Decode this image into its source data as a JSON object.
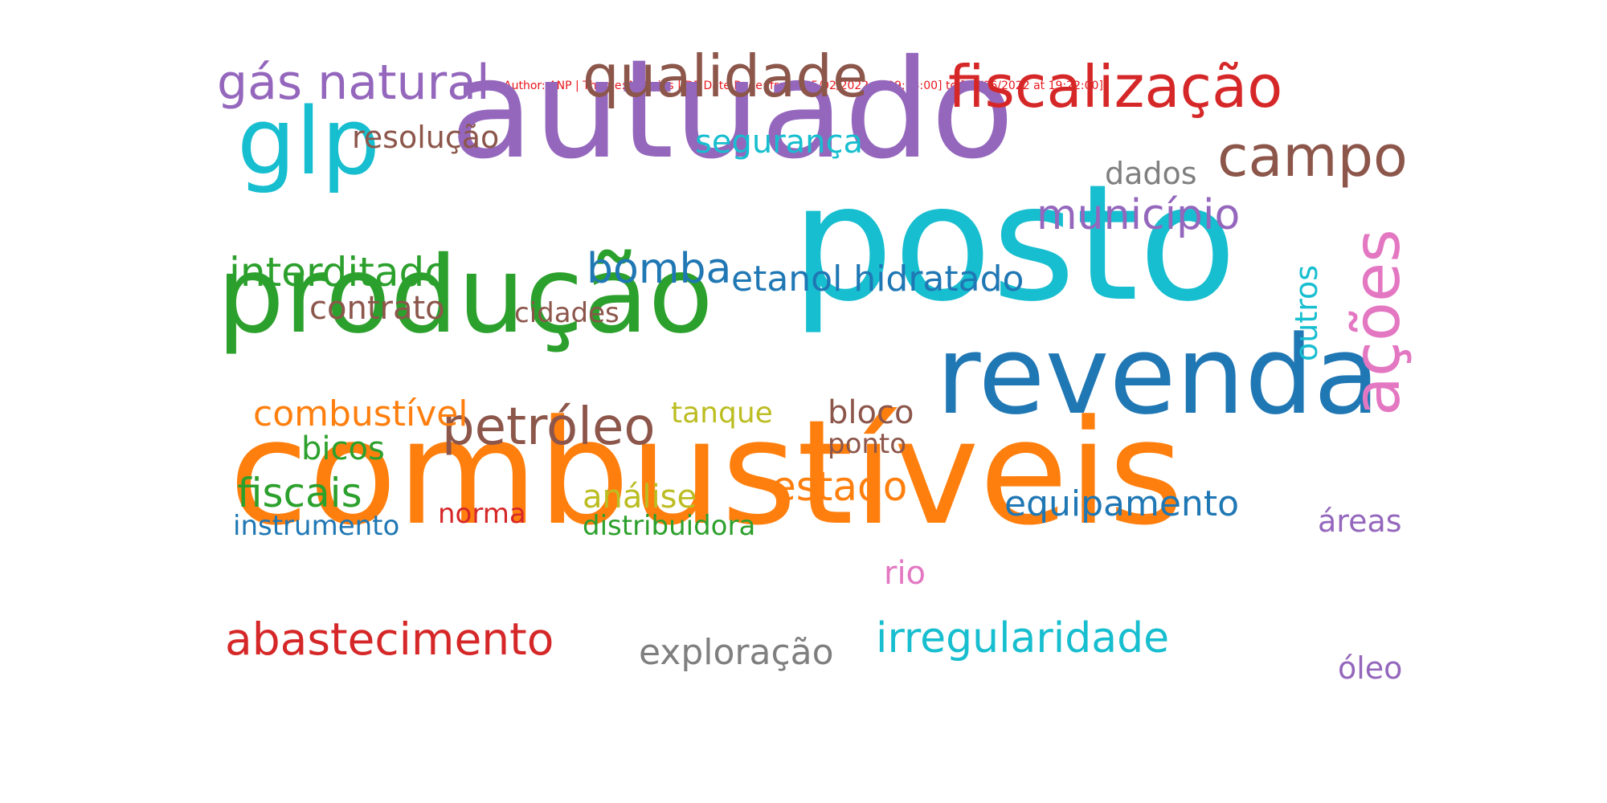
{
  "caption": "Author: ANP | Theme: Noticias | DF Date Rage: from [05/02/2022 at 09:13:00] to [05/06/2022 at 19:22:00]",
  "colors": {
    "background": "#ffffff",
    "caption": "#e8161b"
  },
  "words": [
    {
      "text": "combustíveis",
      "color": "#ff7f0e"
    },
    {
      "text": "posto",
      "color": "#17becf"
    },
    {
      "text": "autuado",
      "color": "#9467bd"
    },
    {
      "text": "produção",
      "color": "#2ca02c"
    },
    {
      "text": "revenda",
      "color": "#1f77b4"
    },
    {
      "text": "glp",
      "color": "#17becf"
    },
    {
      "text": "fiscalização",
      "color": "#d62728"
    },
    {
      "text": "qualidade",
      "color": "#8c564b"
    },
    {
      "text": "gás natural",
      "color": "#9467bd"
    },
    {
      "text": "campo",
      "color": "#8c564b"
    },
    {
      "text": "município",
      "color": "#9467bd"
    },
    {
      "text": "petróleo",
      "color": "#8c564b"
    },
    {
      "text": "irregularidade",
      "color": "#17becf"
    },
    {
      "text": "abastecimento",
      "color": "#d62728"
    },
    {
      "text": "ações",
      "color": "#e377c2",
      "vertical": true
    },
    {
      "text": "interditado",
      "color": "#2ca02c"
    },
    {
      "text": "bomba",
      "color": "#1f77b4"
    },
    {
      "text": "etanol hidratado",
      "color": "#1f77b4"
    },
    {
      "text": "estado",
      "color": "#ff7f0e"
    },
    {
      "text": "fiscais",
      "color": "#2ca02c"
    },
    {
      "text": "exploração",
      "color": "#7f7f7f"
    },
    {
      "text": "equipamento",
      "color": "#1f77b4"
    },
    {
      "text": "combustível",
      "color": "#ff7f0e"
    },
    {
      "text": "segurança",
      "color": "#17becf"
    },
    {
      "text": "resolução",
      "color": "#8c564b"
    },
    {
      "text": "contrato",
      "color": "#8c564b"
    },
    {
      "text": "outros",
      "color": "#17becf",
      "vertical": true
    },
    {
      "text": "bloco",
      "color": "#8c564b"
    },
    {
      "text": "análise",
      "color": "#bcbd22"
    },
    {
      "text": "dados",
      "color": "#7f7f7f"
    },
    {
      "text": "tanque",
      "color": "#bcbd22"
    },
    {
      "text": "bicos",
      "color": "#2ca02c"
    },
    {
      "text": "áreas",
      "color": "#9467bd"
    },
    {
      "text": "óleo",
      "color": "#9467bd"
    },
    {
      "text": "instrumento",
      "color": "#1f77b4"
    },
    {
      "text": "distribuidora",
      "color": "#2ca02c"
    },
    {
      "text": "cidades",
      "color": "#8c564b"
    },
    {
      "text": "ponto",
      "color": "#8c564b"
    },
    {
      "text": "norma",
      "color": "#d62728"
    },
    {
      "text": "rio",
      "color": "#e377c2"
    }
  ]
}
